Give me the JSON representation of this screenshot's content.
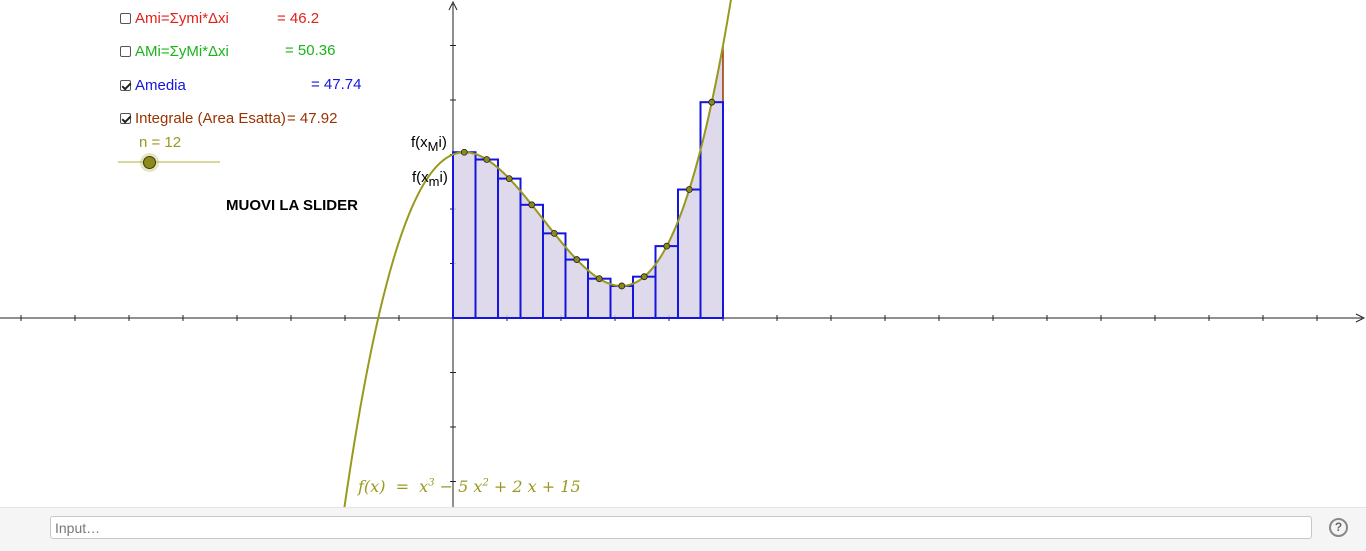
{
  "checkboxes": [
    {
      "label": "Ami=Σymi*Δxi",
      "value": "= 46.2",
      "checked": false,
      "color": "#e0211b"
    },
    {
      "label": "AMi=ΣyMi*Δxi",
      "value": "= 50.36",
      "checked": false,
      "color": "#18b418"
    },
    {
      "label": "Amedia",
      "value": "= 47.74",
      "checked": true,
      "color": "#1515dd"
    },
    {
      "label": "Integrale (Area Esatta)",
      "value": "= 47.92",
      "checked": true,
      "color": "#993300"
    }
  ],
  "slider": {
    "label": "n = 12",
    "value": 12,
    "color": "#99991f"
  },
  "instruction": "MUOVI LA SLIDER",
  "labels": {
    "max": {
      "f": "f(x",
      "sub": "M",
      "i": "i)"
    },
    "min": {
      "f": "f(x",
      "sub": "m",
      "i": "i)"
    }
  },
  "formula": {
    "lhs": "f(x)  =  x",
    "exp1": "3",
    "mid": " − 5 x",
    "exp2": "2",
    "rhs": " + 2 x + 15"
  },
  "input": {
    "placeholder": "Input…"
  },
  "help": {
    "glyph": "?"
  },
  "graph": {
    "function": "x^3 - 5x^2 + 2x + 15",
    "a": 0,
    "b": 5,
    "n": 12,
    "colors": {
      "curve": "#99991f",
      "rects": "#1515dd",
      "area_fill": "#d9d2e9",
      "area_stroke": "#993300",
      "points": "#8c8a1c"
    }
  }
}
